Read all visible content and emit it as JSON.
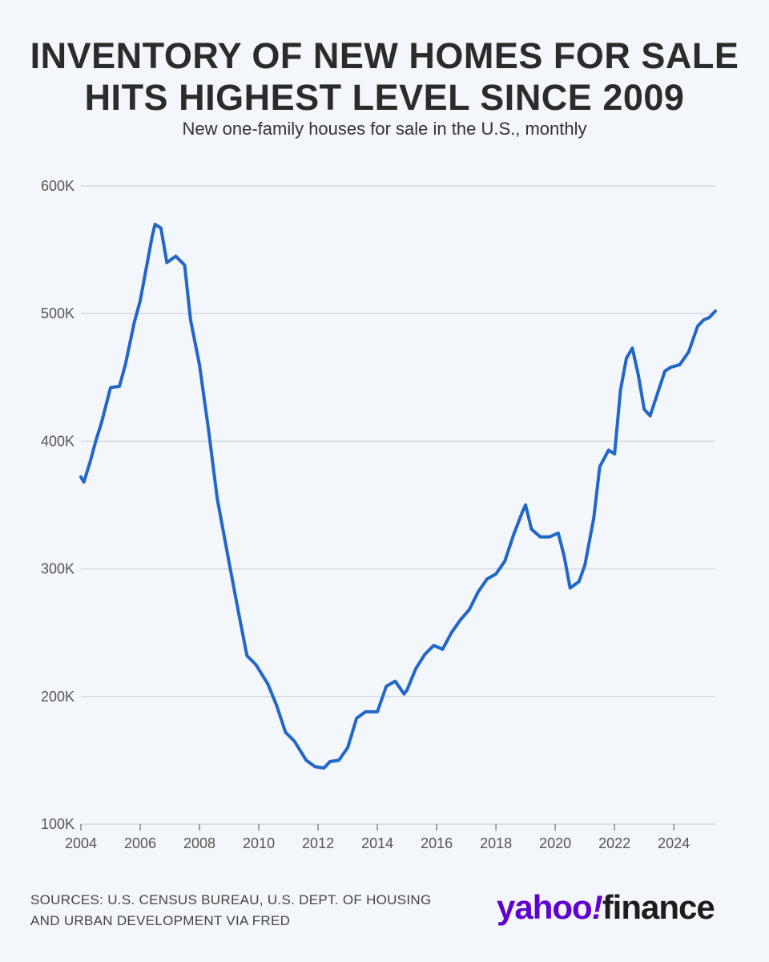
{
  "header": {
    "title_line1": "INVENTORY OF NEW HOMES FOR SALE",
    "title_line2": "HITS HIGHEST LEVEL SINCE 2009",
    "subtitle": "New one-family houses for sale in the U.S., monthly"
  },
  "footer": {
    "sources_line1": "SOURCES: U.S. CENSUS BUREAU, U.S. DEPT. OF HOUSING",
    "sources_line2": "AND URBAN DEVELOPMENT VIA FRED",
    "logo_brand": "yahoo",
    "logo_bang": "!",
    "logo_finance": "finance"
  },
  "colors": {
    "line": "#2166c9",
    "grid": "#d5d9e0",
    "brand": "#6001d2"
  },
  "chart_data": {
    "type": "line",
    "title": "INVENTORY OF NEW HOMES FOR SALE HITS HIGHEST LEVEL SINCE 2009",
    "subtitle": "New one-family houses for sale in the U.S., monthly",
    "xlabel": "",
    "ylabel": "",
    "xlim": [
      2004,
      2025.4
    ],
    "ylim": [
      100000,
      600000
    ],
    "grid": true,
    "x_ticks": [
      "2004",
      "2006",
      "2008",
      "2010",
      "2012",
      "2014",
      "2016",
      "2018",
      "2020",
      "2022",
      "2024"
    ],
    "y_ticks": [
      "100K",
      "200K",
      "300K",
      "400K",
      "500K",
      "600K"
    ],
    "y_tick_values": [
      100000,
      200000,
      300000,
      400000,
      500000,
      600000
    ],
    "series": [
      {
        "x": [
          2004.0,
          2004.1,
          2004.3,
          2004.5,
          2004.7,
          2005.0,
          2005.3,
          2005.5,
          2005.8,
          2006.0,
          2006.2,
          2006.4,
          2006.5,
          2006.7,
          2006.9,
          2007.2,
          2007.5,
          2007.7,
          2008.0,
          2008.3,
          2008.6,
          2009.0,
          2009.3,
          2009.6,
          2009.9,
          2010.3,
          2010.6,
          2010.9,
          2011.2,
          2011.6,
          2011.9,
          2012.2,
          2012.4,
          2012.7,
          2013.0,
          2013.3,
          2013.6,
          2014.0,
          2014.3,
          2014.6,
          2014.9,
          2015.0,
          2015.3,
          2015.6,
          2015.9,
          2016.2,
          2016.5,
          2016.8,
          2017.1,
          2017.4,
          2017.7,
          2018.0,
          2018.3,
          2018.6,
          2018.9,
          2019.0,
          2019.2,
          2019.5,
          2019.8,
          2020.1,
          2020.3,
          2020.5,
          2020.8,
          2021.0,
          2021.3,
          2021.5,
          2021.8,
          2022.0,
          2022.2,
          2022.4,
          2022.6,
          2022.8,
          2023.0,
          2023.2,
          2023.4,
          2023.7,
          2023.9,
          2024.2,
          2024.5,
          2024.8,
          2025.0,
          2025.2,
          2025.4
        ],
        "y": [
          372000,
          368000,
          383000,
          400000,
          415000,
          442000,
          443000,
          460000,
          493000,
          510000,
          535000,
          560000,
          570000,
          567000,
          540000,
          545000,
          538000,
          495000,
          460000,
          410000,
          355000,
          305000,
          268000,
          232000,
          225000,
          210000,
          193000,
          172000,
          165000,
          150000,
          145000,
          144000,
          149000,
          150000,
          160000,
          183000,
          188000,
          188000,
          208000,
          212000,
          202000,
          205000,
          222000,
          233000,
          240000,
          237000,
          250000,
          260000,
          268000,
          282000,
          292000,
          296000,
          306000,
          327000,
          345000,
          350000,
          331000,
          325000,
          325000,
          328000,
          310000,
          285000,
          290000,
          303000,
          340000,
          380000,
          393000,
          390000,
          440000,
          465000,
          473000,
          452000,
          425000,
          420000,
          434000,
          455000,
          458000,
          460000,
          470000,
          490000,
          495000,
          497000,
          502000
        ]
      }
    ]
  }
}
